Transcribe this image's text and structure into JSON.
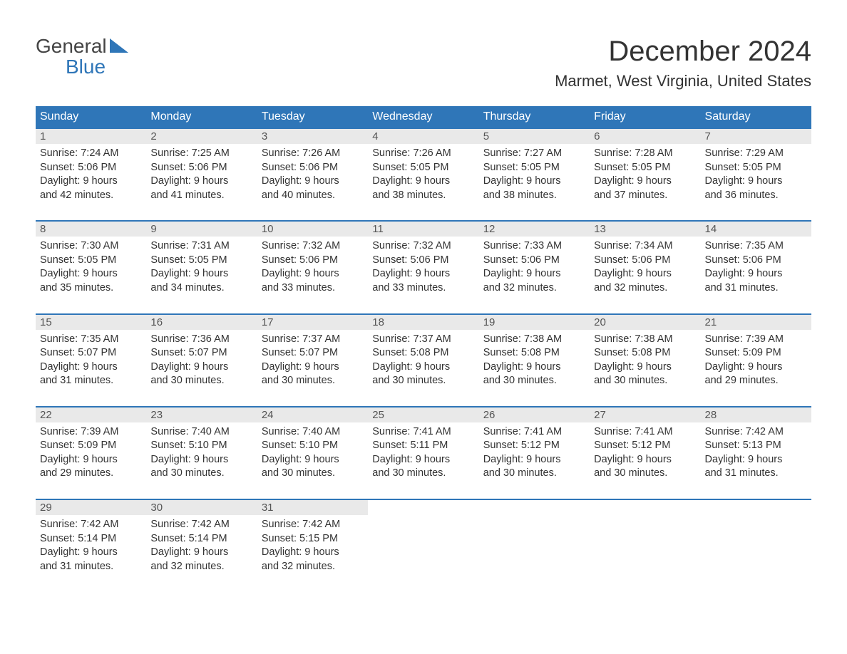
{
  "logo": {
    "top": "General",
    "bottom": "Blue"
  },
  "title": "December 2024",
  "location": "Marmet, West Virginia, United States",
  "colors": {
    "header_bg": "#2f76b8",
    "header_text": "#ffffff",
    "daynum_bg": "#e9e9e9",
    "week_border": "#2f76b8",
    "body_text": "#333333",
    "logo_gray": "#444444",
    "logo_blue": "#2f76b8",
    "page_bg": "#ffffff"
  },
  "typography": {
    "title_fontsize": 40,
    "location_fontsize": 22,
    "header_fontsize": 16,
    "cell_fontsize": 14.5
  },
  "layout": {
    "columns": 7,
    "rows": 5
  },
  "day_names": [
    "Sunday",
    "Monday",
    "Tuesday",
    "Wednesday",
    "Thursday",
    "Friday",
    "Saturday"
  ],
  "weeks": [
    [
      {
        "n": "1",
        "sr": "Sunrise: 7:24 AM",
        "ss": "Sunset: 5:06 PM",
        "d1": "Daylight: 9 hours",
        "d2": "and 42 minutes."
      },
      {
        "n": "2",
        "sr": "Sunrise: 7:25 AM",
        "ss": "Sunset: 5:06 PM",
        "d1": "Daylight: 9 hours",
        "d2": "and 41 minutes."
      },
      {
        "n": "3",
        "sr": "Sunrise: 7:26 AM",
        "ss": "Sunset: 5:06 PM",
        "d1": "Daylight: 9 hours",
        "d2": "and 40 minutes."
      },
      {
        "n": "4",
        "sr": "Sunrise: 7:26 AM",
        "ss": "Sunset: 5:05 PM",
        "d1": "Daylight: 9 hours",
        "d2": "and 38 minutes."
      },
      {
        "n": "5",
        "sr": "Sunrise: 7:27 AM",
        "ss": "Sunset: 5:05 PM",
        "d1": "Daylight: 9 hours",
        "d2": "and 38 minutes."
      },
      {
        "n": "6",
        "sr": "Sunrise: 7:28 AM",
        "ss": "Sunset: 5:05 PM",
        "d1": "Daylight: 9 hours",
        "d2": "and 37 minutes."
      },
      {
        "n": "7",
        "sr": "Sunrise: 7:29 AM",
        "ss": "Sunset: 5:05 PM",
        "d1": "Daylight: 9 hours",
        "d2": "and 36 minutes."
      }
    ],
    [
      {
        "n": "8",
        "sr": "Sunrise: 7:30 AM",
        "ss": "Sunset: 5:05 PM",
        "d1": "Daylight: 9 hours",
        "d2": "and 35 minutes."
      },
      {
        "n": "9",
        "sr": "Sunrise: 7:31 AM",
        "ss": "Sunset: 5:05 PM",
        "d1": "Daylight: 9 hours",
        "d2": "and 34 minutes."
      },
      {
        "n": "10",
        "sr": "Sunrise: 7:32 AM",
        "ss": "Sunset: 5:06 PM",
        "d1": "Daylight: 9 hours",
        "d2": "and 33 minutes."
      },
      {
        "n": "11",
        "sr": "Sunrise: 7:32 AM",
        "ss": "Sunset: 5:06 PM",
        "d1": "Daylight: 9 hours",
        "d2": "and 33 minutes."
      },
      {
        "n": "12",
        "sr": "Sunrise: 7:33 AM",
        "ss": "Sunset: 5:06 PM",
        "d1": "Daylight: 9 hours",
        "d2": "and 32 minutes."
      },
      {
        "n": "13",
        "sr": "Sunrise: 7:34 AM",
        "ss": "Sunset: 5:06 PM",
        "d1": "Daylight: 9 hours",
        "d2": "and 32 minutes."
      },
      {
        "n": "14",
        "sr": "Sunrise: 7:35 AM",
        "ss": "Sunset: 5:06 PM",
        "d1": "Daylight: 9 hours",
        "d2": "and 31 minutes."
      }
    ],
    [
      {
        "n": "15",
        "sr": "Sunrise: 7:35 AM",
        "ss": "Sunset: 5:07 PM",
        "d1": "Daylight: 9 hours",
        "d2": "and 31 minutes."
      },
      {
        "n": "16",
        "sr": "Sunrise: 7:36 AM",
        "ss": "Sunset: 5:07 PM",
        "d1": "Daylight: 9 hours",
        "d2": "and 30 minutes."
      },
      {
        "n": "17",
        "sr": "Sunrise: 7:37 AM",
        "ss": "Sunset: 5:07 PM",
        "d1": "Daylight: 9 hours",
        "d2": "and 30 minutes."
      },
      {
        "n": "18",
        "sr": "Sunrise: 7:37 AM",
        "ss": "Sunset: 5:08 PM",
        "d1": "Daylight: 9 hours",
        "d2": "and 30 minutes."
      },
      {
        "n": "19",
        "sr": "Sunrise: 7:38 AM",
        "ss": "Sunset: 5:08 PM",
        "d1": "Daylight: 9 hours",
        "d2": "and 30 minutes."
      },
      {
        "n": "20",
        "sr": "Sunrise: 7:38 AM",
        "ss": "Sunset: 5:08 PM",
        "d1": "Daylight: 9 hours",
        "d2": "and 30 minutes."
      },
      {
        "n": "21",
        "sr": "Sunrise: 7:39 AM",
        "ss": "Sunset: 5:09 PM",
        "d1": "Daylight: 9 hours",
        "d2": "and 29 minutes."
      }
    ],
    [
      {
        "n": "22",
        "sr": "Sunrise: 7:39 AM",
        "ss": "Sunset: 5:09 PM",
        "d1": "Daylight: 9 hours",
        "d2": "and 29 minutes."
      },
      {
        "n": "23",
        "sr": "Sunrise: 7:40 AM",
        "ss": "Sunset: 5:10 PM",
        "d1": "Daylight: 9 hours",
        "d2": "and 30 minutes."
      },
      {
        "n": "24",
        "sr": "Sunrise: 7:40 AM",
        "ss": "Sunset: 5:10 PM",
        "d1": "Daylight: 9 hours",
        "d2": "and 30 minutes."
      },
      {
        "n": "25",
        "sr": "Sunrise: 7:41 AM",
        "ss": "Sunset: 5:11 PM",
        "d1": "Daylight: 9 hours",
        "d2": "and 30 minutes."
      },
      {
        "n": "26",
        "sr": "Sunrise: 7:41 AM",
        "ss": "Sunset: 5:12 PM",
        "d1": "Daylight: 9 hours",
        "d2": "and 30 minutes."
      },
      {
        "n": "27",
        "sr": "Sunrise: 7:41 AM",
        "ss": "Sunset: 5:12 PM",
        "d1": "Daylight: 9 hours",
        "d2": "and 30 minutes."
      },
      {
        "n": "28",
        "sr": "Sunrise: 7:42 AM",
        "ss": "Sunset: 5:13 PM",
        "d1": "Daylight: 9 hours",
        "d2": "and 31 minutes."
      }
    ],
    [
      {
        "n": "29",
        "sr": "Sunrise: 7:42 AM",
        "ss": "Sunset: 5:14 PM",
        "d1": "Daylight: 9 hours",
        "d2": "and 31 minutes."
      },
      {
        "n": "30",
        "sr": "Sunrise: 7:42 AM",
        "ss": "Sunset: 5:14 PM",
        "d1": "Daylight: 9 hours",
        "d2": "and 32 minutes."
      },
      {
        "n": "31",
        "sr": "Sunrise: 7:42 AM",
        "ss": "Sunset: 5:15 PM",
        "d1": "Daylight: 9 hours",
        "d2": "and 32 minutes."
      },
      null,
      null,
      null,
      null
    ]
  ]
}
